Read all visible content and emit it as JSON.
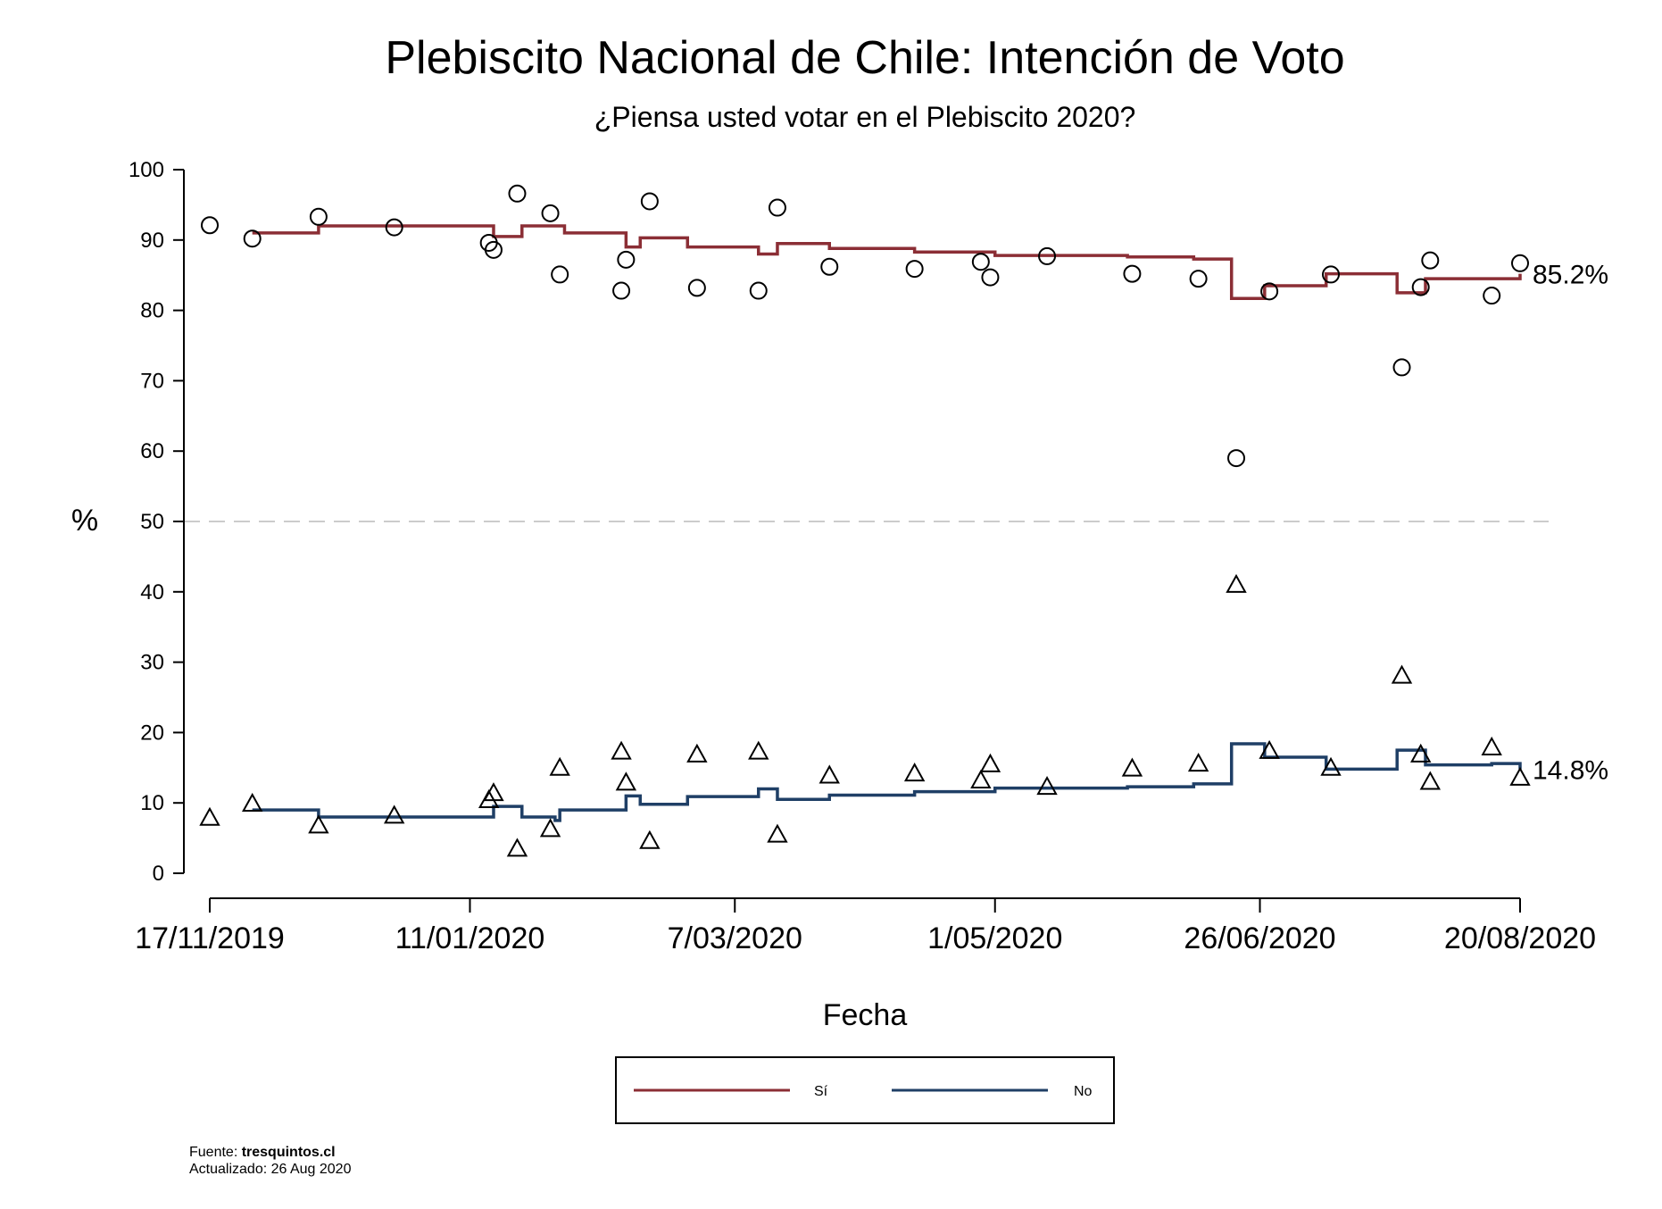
{
  "chart_data": {
    "type": "line",
    "title": "Plebiscito Nacional de Chile: Intención de Voto",
    "subtitle": "¿Piensa usted votar en el Plebiscito 2020?",
    "xlabel": "Fecha",
    "ylabel": "%",
    "ylim": [
      0,
      100
    ],
    "yticks": [
      0,
      10,
      20,
      30,
      40,
      50,
      60,
      70,
      80,
      90,
      100
    ],
    "xlim": [
      "2019-11-17",
      "2020-08-20"
    ],
    "xticks": [
      {
        "date": "2019-11-17",
        "label": "17/11/2019"
      },
      {
        "date": "2020-01-11",
        "label": "11/01/2020"
      },
      {
        "date": "2020-03-07",
        "label": "7/03/2020"
      },
      {
        "date": "2020-05-01",
        "label": "1/05/2020"
      },
      {
        "date": "2020-06-26",
        "label": "26/06/2020"
      },
      {
        "date": "2020-08-20",
        "label": "20/08/2020"
      }
    ],
    "reference_line": {
      "y": 50,
      "style": "dashed",
      "color": "#cccccc"
    },
    "grid": false,
    "legend": {
      "position": "bottom",
      "items": [
        "Sí",
        "No"
      ]
    },
    "series": [
      {
        "name": "Sí",
        "color": "#8B2E35",
        "marker": "circle",
        "end_label": "85.2%",
        "line": [
          {
            "x": "2019-11-26",
            "y": 91
          },
          {
            "x": "2019-12-10",
            "y": 92
          },
          {
            "x": "2020-01-16",
            "y": 90.5
          },
          {
            "x": "2020-01-22",
            "y": 92
          },
          {
            "x": "2020-01-31",
            "y": 91
          },
          {
            "x": "2020-02-13",
            "y": 89
          },
          {
            "x": "2020-02-16",
            "y": 90.3
          },
          {
            "x": "2020-02-26",
            "y": 89
          },
          {
            "x": "2020-03-12",
            "y": 88
          },
          {
            "x": "2020-03-16",
            "y": 89.5
          },
          {
            "x": "2020-03-27",
            "y": 88.8
          },
          {
            "x": "2020-04-14",
            "y": 88.3
          },
          {
            "x": "2020-05-01",
            "y": 87.8
          },
          {
            "x": "2020-05-29",
            "y": 87.6
          },
          {
            "x": "2020-06-12",
            "y": 87.3
          },
          {
            "x": "2020-06-20",
            "y": 81.7
          },
          {
            "x": "2020-06-27",
            "y": 83.5
          },
          {
            "x": "2020-07-10",
            "y": 85.2
          },
          {
            "x": "2020-07-25",
            "y": 82.5
          },
          {
            "x": "2020-07-31",
            "y": 84.5
          },
          {
            "x": "2020-08-20",
            "y": 85.2
          }
        ],
        "points": [
          {
            "x": "2019-11-17",
            "y": 92.1
          },
          {
            "x": "2019-11-26",
            "y": 90.2
          },
          {
            "x": "2019-12-10",
            "y": 93.3
          },
          {
            "x": "2019-12-26",
            "y": 91.8
          },
          {
            "x": "2020-01-15",
            "y": 89.6
          },
          {
            "x": "2020-01-16",
            "y": 88.6
          },
          {
            "x": "2020-01-21",
            "y": 96.6
          },
          {
            "x": "2020-01-28",
            "y": 93.8
          },
          {
            "x": "2020-01-30",
            "y": 85.1
          },
          {
            "x": "2020-02-12",
            "y": 82.8
          },
          {
            "x": "2020-02-13",
            "y": 87.2
          },
          {
            "x": "2020-02-18",
            "y": 95.5
          },
          {
            "x": "2020-02-28",
            "y": 83.2
          },
          {
            "x": "2020-03-12",
            "y": 82.8
          },
          {
            "x": "2020-03-16",
            "y": 94.6
          },
          {
            "x": "2020-03-27",
            "y": 86.2
          },
          {
            "x": "2020-04-14",
            "y": 85.9
          },
          {
            "x": "2020-04-28",
            "y": 86.9
          },
          {
            "x": "2020-04-30",
            "y": 84.7
          },
          {
            "x": "2020-05-12",
            "y": 87.7
          },
          {
            "x": "2020-05-30",
            "y": 85.2
          },
          {
            "x": "2020-06-13",
            "y": 84.5
          },
          {
            "x": "2020-06-21",
            "y": 59.0
          },
          {
            "x": "2020-06-28",
            "y": 82.7
          },
          {
            "x": "2020-07-11",
            "y": 85.1
          },
          {
            "x": "2020-07-26",
            "y": 71.9
          },
          {
            "x": "2020-07-30",
            "y": 83.3
          },
          {
            "x": "2020-08-01",
            "y": 87.1
          },
          {
            "x": "2020-08-14",
            "y": 82.1
          },
          {
            "x": "2020-08-20",
            "y": 86.7
          }
        ]
      },
      {
        "name": "No",
        "color": "#1F3F66",
        "marker": "triangle",
        "end_label": "14.8%",
        "line": [
          {
            "x": "2019-11-26",
            "y": 9
          },
          {
            "x": "2019-12-10",
            "y": 8
          },
          {
            "x": "2020-01-16",
            "y": 9.5
          },
          {
            "x": "2020-01-22",
            "y": 8
          },
          {
            "x": "2020-01-29",
            "y": 7.5
          },
          {
            "x": "2020-01-30",
            "y": 9
          },
          {
            "x": "2020-02-13",
            "y": 11
          },
          {
            "x": "2020-02-16",
            "y": 9.8
          },
          {
            "x": "2020-02-26",
            "y": 10.9
          },
          {
            "x": "2020-03-12",
            "y": 12
          },
          {
            "x": "2020-03-16",
            "y": 10.5
          },
          {
            "x": "2020-03-27",
            "y": 11.1
          },
          {
            "x": "2020-04-14",
            "y": 11.6
          },
          {
            "x": "2020-05-01",
            "y": 12.1
          },
          {
            "x": "2020-05-29",
            "y": 12.3
          },
          {
            "x": "2020-06-12",
            "y": 12.7
          },
          {
            "x": "2020-06-20",
            "y": 18.4
          },
          {
            "x": "2020-06-27",
            "y": 16.5
          },
          {
            "x": "2020-07-10",
            "y": 14.8
          },
          {
            "x": "2020-07-25",
            "y": 17.5
          },
          {
            "x": "2020-07-31",
            "y": 15.4
          },
          {
            "x": "2020-08-14",
            "y": 15.6
          },
          {
            "x": "2020-08-20",
            "y": 14.8
          }
        ],
        "points": [
          {
            "x": "2019-11-17",
            "y": 7.9
          },
          {
            "x": "2019-11-26",
            "y": 9.9
          },
          {
            "x": "2019-12-10",
            "y": 6.8
          },
          {
            "x": "2019-12-26",
            "y": 8.2
          },
          {
            "x": "2020-01-15",
            "y": 10.4
          },
          {
            "x": "2020-01-16",
            "y": 11.4
          },
          {
            "x": "2020-01-21",
            "y": 3.5
          },
          {
            "x": "2020-01-28",
            "y": 6.3
          },
          {
            "x": "2020-01-30",
            "y": 15.0
          },
          {
            "x": "2020-02-12",
            "y": 17.3
          },
          {
            "x": "2020-02-13",
            "y": 12.9
          },
          {
            "x": "2020-02-18",
            "y": 4.6
          },
          {
            "x": "2020-02-28",
            "y": 16.9
          },
          {
            "x": "2020-03-12",
            "y": 17.3
          },
          {
            "x": "2020-03-16",
            "y": 5.5
          },
          {
            "x": "2020-03-27",
            "y": 13.9
          },
          {
            "x": "2020-04-14",
            "y": 14.2
          },
          {
            "x": "2020-04-28",
            "y": 13.2
          },
          {
            "x": "2020-04-30",
            "y": 15.5
          },
          {
            "x": "2020-05-12",
            "y": 12.3
          },
          {
            "x": "2020-05-30",
            "y": 14.9
          },
          {
            "x": "2020-06-13",
            "y": 15.6
          },
          {
            "x": "2020-06-21",
            "y": 41.0
          },
          {
            "x": "2020-06-28",
            "y": 17.4
          },
          {
            "x": "2020-07-11",
            "y": 15.0
          },
          {
            "x": "2020-07-26",
            "y": 28.1
          },
          {
            "x": "2020-07-30",
            "y": 16.9
          },
          {
            "x": "2020-08-01",
            "y": 13.0
          },
          {
            "x": "2020-08-14",
            "y": 17.9
          },
          {
            "x": "2020-08-20",
            "y": 13.6
          }
        ]
      }
    ]
  },
  "footer": {
    "source_prefix": "Fuente: ",
    "source_name": "tresquintos.cl",
    "updated": "Actualizado: 26 Aug 2020"
  }
}
